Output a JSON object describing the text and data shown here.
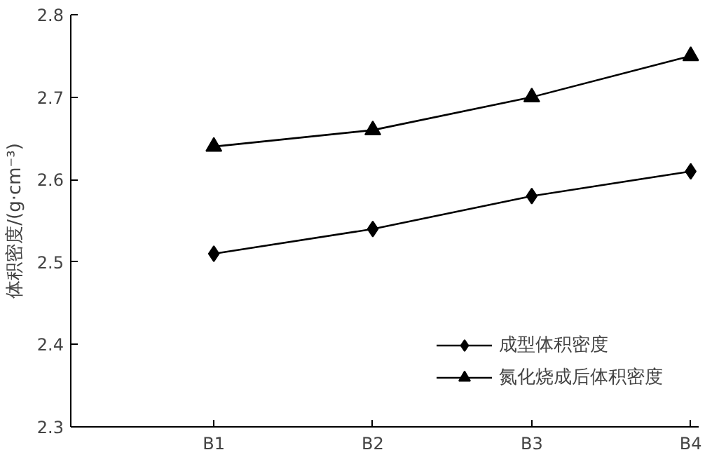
{
  "chart_data": {
    "type": "line",
    "ylabel": "体积密度/(g·cm⁻³)",
    "categories": [
      "B1",
      "B2",
      "B3",
      "B4"
    ],
    "series": [
      {
        "name": "成型体积密度",
        "color": "#000000",
        "marker": "diamond",
        "values": [
          2.51,
          2.54,
          2.58,
          2.61
        ]
      },
      {
        "name": "氮化烧成后体积密度",
        "color": "#000000",
        "marker": "triangle",
        "values": [
          2.64,
          2.66,
          2.7,
          2.75
        ]
      }
    ],
    "ylim": [
      2.3,
      2.8
    ],
    "yticks": [
      2.3,
      2.4,
      2.5,
      2.6,
      2.7,
      2.8
    ],
    "grid": false,
    "legend": "bottom right",
    "line_style": "solid"
  }
}
